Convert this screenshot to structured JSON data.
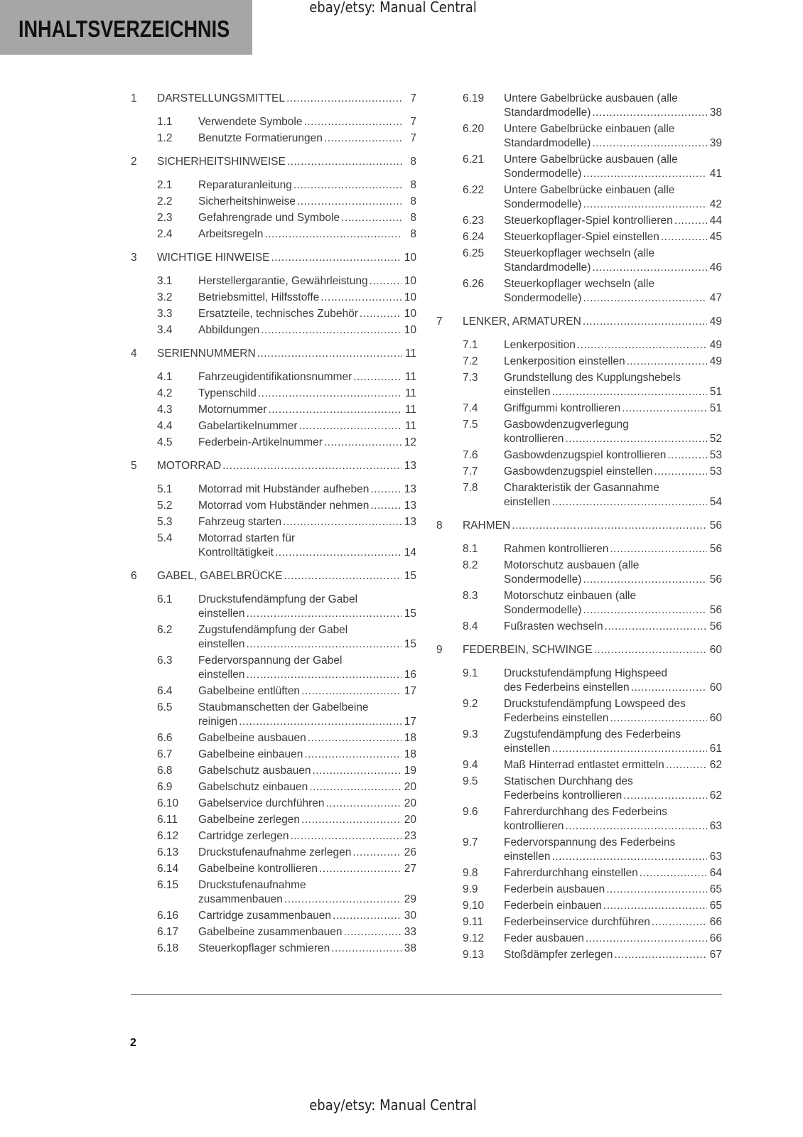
{
  "header": {
    "title": "INHALTSVERZEICHNIS",
    "watermark": "ebay/etsy: Manual Central"
  },
  "footer": {
    "page_number": "2",
    "watermark": "ebay/etsy: Manual Central"
  },
  "toc": {
    "left": [
      {
        "type": "chapter",
        "num": "1",
        "lines": [
          "DARSTELLUNGSMITTEL"
        ],
        "page": "7"
      },
      {
        "type": "sub",
        "num": "1.1",
        "lines": [
          "Verwendete Symbole"
        ],
        "page": "7"
      },
      {
        "type": "sub",
        "num": "1.2",
        "lines": [
          "Benutzte Formatierungen"
        ],
        "page": "7"
      },
      {
        "type": "chapter",
        "num": "2",
        "lines": [
          "SICHERHEITSHINWEISE"
        ],
        "page": "8"
      },
      {
        "type": "sub",
        "num": "2.1",
        "lines": [
          "Reparaturanleitung"
        ],
        "page": "8"
      },
      {
        "type": "sub",
        "num": "2.2",
        "lines": [
          "Sicherheitshinweise"
        ],
        "page": "8"
      },
      {
        "type": "sub",
        "num": "2.3",
        "lines": [
          "Gefahrengrade und Symbole"
        ],
        "page": "8"
      },
      {
        "type": "sub",
        "num": "2.4",
        "lines": [
          "Arbeitsregeln"
        ],
        "page": "8"
      },
      {
        "type": "chapter",
        "num": "3",
        "lines": [
          "WICHTIGE HINWEISE"
        ],
        "page": "10"
      },
      {
        "type": "sub",
        "num": "3.1",
        "lines": [
          "Herstellergarantie, Gewährleistung"
        ],
        "page": "10"
      },
      {
        "type": "sub",
        "num": "3.2",
        "lines": [
          "Betriebsmittel, Hilfsstoffe"
        ],
        "page": "10"
      },
      {
        "type": "sub",
        "num": "3.3",
        "lines": [
          "Ersatzteile, technisches Zubehör"
        ],
        "page": "10"
      },
      {
        "type": "sub",
        "num": "3.4",
        "lines": [
          "Abbildungen"
        ],
        "page": "10"
      },
      {
        "type": "chapter",
        "num": "4",
        "lines": [
          "SERIENNUMMERN"
        ],
        "page": "11"
      },
      {
        "type": "sub",
        "num": "4.1",
        "lines": [
          "Fahrzeugidentifikationsnummer"
        ],
        "page": "11"
      },
      {
        "type": "sub",
        "num": "4.2",
        "lines": [
          "Typenschild"
        ],
        "page": "11"
      },
      {
        "type": "sub",
        "num": "4.3",
        "lines": [
          "Motornummer"
        ],
        "page": "11"
      },
      {
        "type": "sub",
        "num": "4.4",
        "lines": [
          "Gabelartikelnummer"
        ],
        "page": "11"
      },
      {
        "type": "sub",
        "num": "4.5",
        "lines": [
          "Federbein-Artikelnummer"
        ],
        "page": "12"
      },
      {
        "type": "chapter",
        "num": "5",
        "lines": [
          "MOTORRAD"
        ],
        "page": "13"
      },
      {
        "type": "sub",
        "num": "5.1",
        "lines": [
          "Motorrad mit Hubständer aufheben"
        ],
        "page": "13"
      },
      {
        "type": "sub",
        "num": "5.2",
        "lines": [
          "Motorrad vom Hubständer nehmen"
        ],
        "page": "13"
      },
      {
        "type": "sub",
        "num": "5.3",
        "lines": [
          "Fahrzeug starten"
        ],
        "page": "13"
      },
      {
        "type": "sub",
        "num": "5.4",
        "lines": [
          "Motorrad starten für",
          "Kontrolltätigkeit"
        ],
        "page": "14"
      },
      {
        "type": "chapter",
        "num": "6",
        "lines": [
          "GABEL, GABELBRÜCKE"
        ],
        "page": "15"
      },
      {
        "type": "sub",
        "num": "6.1",
        "lines": [
          "Druckstufendämpfung der Gabel",
          "einstellen"
        ],
        "page": "15"
      },
      {
        "type": "sub",
        "num": "6.2",
        "lines": [
          "Zugstufendämpfung der Gabel",
          "einstellen"
        ],
        "page": "15"
      },
      {
        "type": "sub",
        "num": "6.3",
        "lines": [
          "Federvorspannung der Gabel",
          "einstellen"
        ],
        "page": "16"
      },
      {
        "type": "sub",
        "num": "6.4",
        "lines": [
          "Gabelbeine entlüften"
        ],
        "page": "17"
      },
      {
        "type": "sub",
        "num": "6.5",
        "lines": [
          "Staubmanschetten der Gabelbeine",
          "reinigen"
        ],
        "page": "17"
      },
      {
        "type": "sub",
        "num": "6.6",
        "lines": [
          "Gabelbeine ausbauen"
        ],
        "page": "18"
      },
      {
        "type": "sub",
        "num": "6.7",
        "lines": [
          "Gabelbeine einbauen"
        ],
        "page": "18"
      },
      {
        "type": "sub",
        "num": "6.8",
        "lines": [
          "Gabelschutz ausbauen"
        ],
        "page": "19"
      },
      {
        "type": "sub",
        "num": "6.9",
        "lines": [
          "Gabelschutz einbauen"
        ],
        "page": "20"
      },
      {
        "type": "sub",
        "num": "6.10",
        "lines": [
          "Gabelservice durchführen"
        ],
        "page": "20"
      },
      {
        "type": "sub",
        "num": "6.11",
        "lines": [
          "Gabelbeine zerlegen"
        ],
        "page": "20"
      },
      {
        "type": "sub",
        "num": "6.12",
        "lines": [
          "Cartridge zerlegen"
        ],
        "page": "23"
      },
      {
        "type": "sub",
        "num": "6.13",
        "lines": [
          "Druckstufenaufnahme zerlegen"
        ],
        "page": "26"
      },
      {
        "type": "sub",
        "num": "6.14",
        "lines": [
          "Gabelbeine kontrollieren"
        ],
        "page": "27"
      },
      {
        "type": "sub",
        "num": "6.15",
        "lines": [
          "Druckstufenaufnahme",
          "zusammenbauen"
        ],
        "page": "29"
      },
      {
        "type": "sub",
        "num": "6.16",
        "lines": [
          "Cartridge zusammenbauen"
        ],
        "page": "30"
      },
      {
        "type": "sub",
        "num": "6.17",
        "lines": [
          "Gabelbeine zusammenbauen"
        ],
        "page": "33"
      },
      {
        "type": "sub",
        "num": "6.18",
        "lines": [
          "Steuerkopflager schmieren"
        ],
        "page": "38"
      }
    ],
    "right": [
      {
        "type": "sub",
        "num": "6.19",
        "lines": [
          "Untere Gabelbrücke ausbauen (alle",
          "Standardmodelle)"
        ],
        "page": "38"
      },
      {
        "type": "sub",
        "num": "6.20",
        "lines": [
          "Untere Gabelbrücke einbauen (alle",
          "Standardmodelle)"
        ],
        "page": "39"
      },
      {
        "type": "sub",
        "num": "6.21",
        "lines": [
          "Untere Gabelbrücke ausbauen (alle",
          "Sondermodelle)"
        ],
        "page": "41"
      },
      {
        "type": "sub",
        "num": "6.22",
        "lines": [
          "Untere Gabelbrücke einbauen (alle",
          "Sondermodelle)"
        ],
        "page": "42"
      },
      {
        "type": "sub",
        "num": "6.23",
        "lines": [
          "Steuerkopflager-Spiel kontrollieren"
        ],
        "page": "44"
      },
      {
        "type": "sub",
        "num": "6.24",
        "lines": [
          "Steuerkopflager-Spiel einstellen"
        ],
        "page": "45"
      },
      {
        "type": "sub",
        "num": "6.25",
        "lines": [
          "Steuerkopflager wechseln (alle",
          "Standardmodelle)"
        ],
        "page": "46"
      },
      {
        "type": "sub",
        "num": "6.26",
        "lines": [
          "Steuerkopflager wechseln (alle",
          "Sondermodelle)"
        ],
        "page": "47"
      },
      {
        "type": "chapter",
        "num": "7",
        "lines": [
          "LENKER, ARMATUREN"
        ],
        "page": "49"
      },
      {
        "type": "sub",
        "num": "7.1",
        "lines": [
          "Lenkerposition"
        ],
        "page": "49"
      },
      {
        "type": "sub",
        "num": "7.2",
        "lines": [
          "Lenkerposition einstellen"
        ],
        "page": "49"
      },
      {
        "type": "sub",
        "num": "7.3",
        "lines": [
          "Grundstellung des Kupplungshebels",
          "einstellen"
        ],
        "page": "51"
      },
      {
        "type": "sub",
        "num": "7.4",
        "lines": [
          "Griffgummi kontrollieren"
        ],
        "page": "51"
      },
      {
        "type": "sub",
        "num": "7.5",
        "lines": [
          "Gasbowdenzugverlegung",
          "kontrollieren"
        ],
        "page": "52"
      },
      {
        "type": "sub",
        "num": "7.6",
        "lines": [
          "Gasbowdenzugspiel kontrollieren"
        ],
        "page": "53"
      },
      {
        "type": "sub",
        "num": "7.7",
        "lines": [
          "Gasbowdenzugspiel einstellen"
        ],
        "page": "53"
      },
      {
        "type": "sub",
        "num": "7.8",
        "lines": [
          "Charakteristik der Gasannahme",
          "einstellen"
        ],
        "page": "54"
      },
      {
        "type": "chapter",
        "num": "8",
        "lines": [
          "RAHMEN"
        ],
        "page": "56"
      },
      {
        "type": "sub",
        "num": "8.1",
        "lines": [
          "Rahmen kontrollieren"
        ],
        "page": "56"
      },
      {
        "type": "sub",
        "num": "8.2",
        "lines": [
          "Motorschutz ausbauen (alle",
          "Sondermodelle)"
        ],
        "page": "56"
      },
      {
        "type": "sub",
        "num": "8.3",
        "lines": [
          "Motorschutz einbauen (alle",
          "Sondermodelle)"
        ],
        "page": "56"
      },
      {
        "type": "sub",
        "num": "8.4",
        "lines": [
          "Fußrasten wechseln"
        ],
        "page": "56"
      },
      {
        "type": "chapter",
        "num": "9",
        "lines": [
          "FEDERBEIN, SCHWINGE"
        ],
        "page": "60"
      },
      {
        "type": "sub",
        "num": "9.1",
        "lines": [
          "Druckstufendämpfung Highspeed",
          "des Federbeins einstellen"
        ],
        "page": "60"
      },
      {
        "type": "sub",
        "num": "9.2",
        "lines": [
          "Druckstufendämpfung Lowspeed des",
          "Federbeins einstellen"
        ],
        "page": "60"
      },
      {
        "type": "sub",
        "num": "9.3",
        "lines": [
          "Zugstufendämpfung des Federbeins",
          "einstellen"
        ],
        "page": "61"
      },
      {
        "type": "sub",
        "num": "9.4",
        "lines": [
          "Maß Hinterrad entlastet ermitteln"
        ],
        "page": "62"
      },
      {
        "type": "sub",
        "num": "9.5",
        "lines": [
          "Statischen Durchhang des",
          "Federbeins kontrollieren"
        ],
        "page": "62"
      },
      {
        "type": "sub",
        "num": "9.6",
        "lines": [
          "Fahrerdurchhang des Federbeins",
          "kontrollieren"
        ],
        "page": "63"
      },
      {
        "type": "sub",
        "num": "9.7",
        "lines": [
          "Federvorspannung des Federbeins",
          "einstellen"
        ],
        "page": "63"
      },
      {
        "type": "sub",
        "num": "9.8",
        "lines": [
          "Fahrerdurchhang einstellen"
        ],
        "page": "64"
      },
      {
        "type": "sub",
        "num": "9.9",
        "lines": [
          "Federbein ausbauen"
        ],
        "page": "65"
      },
      {
        "type": "sub",
        "num": "9.10",
        "lines": [
          "Federbein einbauen"
        ],
        "page": "65"
      },
      {
        "type": "sub",
        "num": "9.11",
        "lines": [
          "Federbeinservice durchführen"
        ],
        "page": "66"
      },
      {
        "type": "sub",
        "num": "9.12",
        "lines": [
          "Feder ausbauen"
        ],
        "page": "66"
      },
      {
        "type": "sub",
        "num": "9.13",
        "lines": [
          "Stoßdämpfer zerlegen"
        ],
        "page": "67"
      }
    ]
  }
}
